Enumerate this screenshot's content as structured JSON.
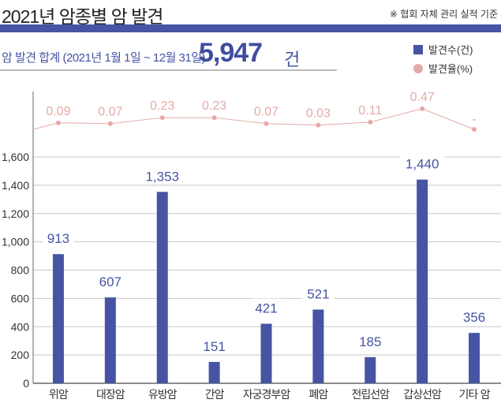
{
  "title": "2021년 암종별 암 발견",
  "note": "※ 협회 자체 관리 실적 기준",
  "summary": {
    "label": "암 발견 합계 (2021년 1월 1일 ~ 12월 31일)",
    "value": "5,947",
    "unit": "건"
  },
  "colors": {
    "bar": "#4654a3",
    "rate": "#e4aaa8",
    "accent": "#4654a3"
  },
  "chart_data": {
    "type": "bar",
    "categories": [
      "위암",
      "대장암",
      "유방암",
      "간암",
      "자궁경부암",
      "폐암",
      "전립선암",
      "갑상선암",
      "기타 암"
    ],
    "series": [
      {
        "name": "발견수(건)",
        "type": "bar",
        "values": [
          913,
          607,
          1353,
          151,
          421,
          521,
          185,
          1440,
          356
        ],
        "labels": [
          "913",
          "607",
          "1,353",
          "151",
          "421",
          "521",
          "185",
          "1,440",
          "356"
        ]
      },
      {
        "name": "발견율(%)",
        "type": "line",
        "values": [
          0.09,
          0.07,
          0.23,
          0.23,
          0.07,
          0.03,
          0.11,
          0.47,
          null
        ],
        "labels": [
          "0.09",
          "0.07",
          "0.23",
          "0.23",
          "0.07",
          "0.03",
          "0.11",
          "0.47",
          "-"
        ]
      }
    ],
    "yticks": [
      "0",
      "200",
      "400",
      "600",
      "800",
      "1,000",
      "1,200",
      "1,400",
      "1,600"
    ],
    "ylim": [
      0,
      1600
    ],
    "grid": true,
    "legend": "top-right"
  }
}
